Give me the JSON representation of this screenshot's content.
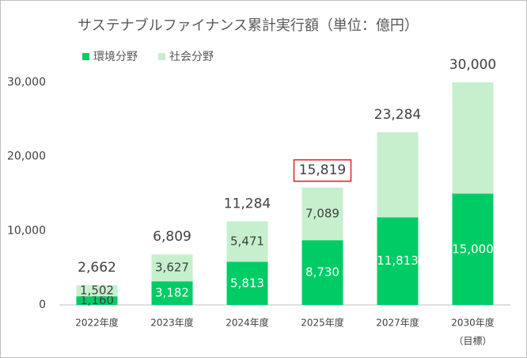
{
  "chart_data": {
    "type": "stacked_bar",
    "title": "サステナブルファイナンス累計実行額（単位：億円）",
    "categories": [
      "2022年度",
      "2023年度",
      "2024年度",
      "2025年度",
      "2027年度",
      "2030年度"
    ],
    "annotations": [
      "（目標）"
    ],
    "series": [
      {
        "name": "環境分野",
        "color": "#00cc66",
        "values": [
          1160,
          3182,
          5813,
          8730,
          11813,
          15000
        ],
        "value_labels": [
          "1,160",
          "3,182",
          "5,813",
          "8,730",
          "11,813",
          "15,000"
        ]
      },
      {
        "name": "社会分野",
        "color": "#c6efce",
        "values": [
          1502,
          3627,
          5471,
          7089,
          11471,
          15000
        ],
        "value_labels": [
          "1,502",
          "3,627",
          "5,471",
          "7,089",
          null,
          null
        ]
      }
    ],
    "totals": [
      2662,
      6809,
      11284,
      15819,
      23284,
      30000
    ],
    "total_labels": [
      "2,662",
      "6,809",
      "11,284",
      "15,819",
      "23,284",
      "30,000"
    ],
    "highlight_index": 3,
    "highlight_color": "#e02020",
    "ylim": [
      0,
      30000
    ],
    "yticks": [
      0,
      {
        "value": 10000,
        "label": "10,000"
      },
      {
        "value": 20000,
        "label": "20,000"
      },
      {
        "value": 30000,
        "label": "30,000"
      }
    ],
    "legend": "top-left"
  }
}
